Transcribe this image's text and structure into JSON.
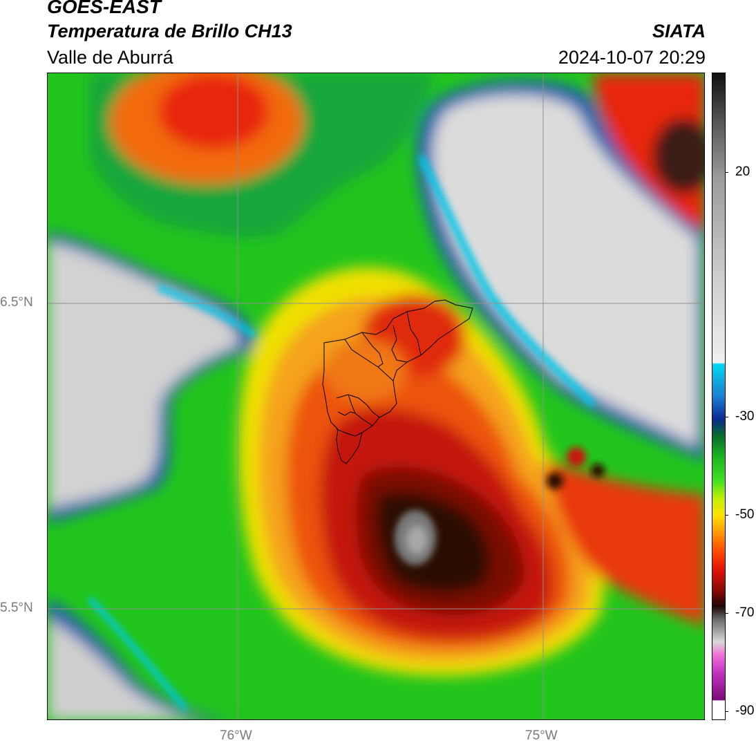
{
  "header": {
    "satellite": "GOES-EAST",
    "product": "Temperatura de Brillo CH13",
    "source": "SIATA",
    "region": "Valle de Aburrá",
    "timestamp": "2024-10-07 20:29"
  },
  "map": {
    "lat_labels": [
      "6.5°N",
      "5.5°N"
    ],
    "lon_labels": [
      "76°W",
      "75°W"
    ]
  },
  "colorbar": {
    "ticks": [
      "20",
      "-30",
      "-50",
      "-70",
      "-90"
    ]
  }
}
